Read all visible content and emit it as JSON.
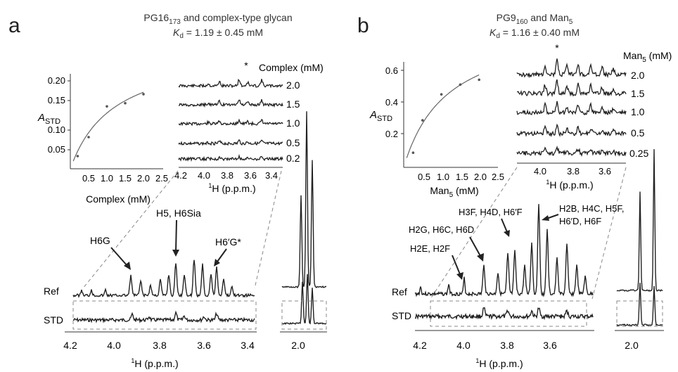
{
  "colors": {
    "ink": "#222222",
    "dash": "#888888",
    "point": "#555555",
    "fit": "#666666"
  },
  "panels": [
    {
      "letter": "a",
      "title_line1": {
        "pre": "PG16",
        "sub": "173",
        "post": " and complex-type glycan"
      },
      "title_line2": {
        "kd_k": "K",
        "kd_sub": "d",
        "kd_value": " = 1.19 ± 0.45 mM"
      },
      "inset": {
        "ylabel": {
          "main": "A",
          "sub": "STD"
        },
        "xlabel": "Complex (mM)",
        "xlim": [
          0,
          2.5
        ],
        "ylim": [
          0,
          0.21
        ],
        "xticks": [
          "0.5",
          "1.0",
          "1.5",
          "2.0",
          "2.5"
        ],
        "yticks": [
          "0.05",
          "0.10",
          "0.15",
          "0.20"
        ]
      },
      "std_series": {
        "header": "Complex (mM)",
        "star": "*",
        "levels": [
          "2.0",
          "1.5",
          "1.0",
          "0.5",
          "0.2"
        ],
        "xticks": [
          "4.2",
          "4.0",
          "3.8",
          "3.6",
          "3.4"
        ],
        "xlabel": {
          "sup": "1",
          "main": "H (p.p.m.)"
        }
      },
      "main_spectrum": {
        "ref_label": "Ref",
        "std_label": "STD",
        "xticks": [
          "4.2",
          "4.0",
          "3.8",
          "3.6",
          "3.4"
        ],
        "side_tick": "2.0",
        "xlabel": {
          "sup": "1",
          "main": "H (p.p.m.)"
        },
        "annotations": [
          {
            "text": "H6G"
          },
          {
            "text": "H5, H6Sia"
          },
          {
            "text": "H6′G*"
          }
        ]
      }
    },
    {
      "letter": "b",
      "title_line1": {
        "pre": "PG9",
        "sub": "160",
        "post": " and Man",
        "sub2": "5"
      },
      "title_line2": {
        "kd_k": "K",
        "kd_sub": "d",
        "kd_value": " = 1.16 ± 0.40 mM"
      },
      "inset": {
        "ylabel": {
          "main": "A",
          "sub": "STD"
        },
        "xlabel": {
          "pre": "Man",
          "sub": "5",
          "post": " (mM)"
        },
        "xlim": [
          0,
          2.5
        ],
        "ylim": [
          0,
          0.65
        ],
        "xticks": [
          "0.5",
          "1.0",
          "1.5",
          "2.0",
          "2.5"
        ],
        "yticks": [
          "0.2",
          "0.4",
          "0.6"
        ]
      },
      "std_series": {
        "header": {
          "pre": "Man",
          "sub": "5",
          "post": " (mM)"
        },
        "star": "*",
        "levels": [
          "2.0",
          "1.5",
          "1.0",
          "0.5",
          "0.25"
        ],
        "xticks": [
          "4.0",
          "3.8",
          "3.6"
        ],
        "xlabel": {
          "sup": "1",
          "main": "H (p.p.m.)"
        }
      },
      "main_spectrum": {
        "ref_label": "Ref",
        "std_label": "STD",
        "xticks": [
          "4.2",
          "4.0",
          "3.8",
          "3.6"
        ],
        "side_tick": "2.0",
        "xlabel": {
          "sup": "1",
          "main": "H (p.p.m.)"
        },
        "annotations": [
          {
            "text": "H3F, H4D, H6′F"
          },
          {
            "text": "H2B, H4C, H5F,"
          },
          {
            "text": "H6′D, H6F"
          },
          {
            "text": "H2G, H6C, H6D"
          },
          {
            "text": "H2E, H2F"
          }
        ]
      }
    }
  ],
  "chart_data": [
    {
      "type": "scatter",
      "panel": "a",
      "title": "PG16173 and complex-type glycan",
      "xlabel": "Complex (mM)",
      "ylabel": "ASTD",
      "xlim": [
        0,
        2.5
      ],
      "ylim": [
        0,
        0.21
      ],
      "series": [
        {
          "x": [
            0.2,
            0.5,
            1.0,
            1.5,
            2.0
          ],
          "y": [
            0.028,
            0.07,
            0.138,
            0.145,
            0.165
          ]
        }
      ],
      "fit": {
        "model": "saturation",
        "kd": 1.19,
        "amax": 0.27
      },
      "grid": false
    },
    {
      "type": "scatter",
      "panel": "b",
      "title": "PG9160 and Man5",
      "xlabel": "Man5 (mM)",
      "ylabel": "ASTD",
      "xlim": [
        0,
        2.5
      ],
      "ylim": [
        0,
        0.65
      ],
      "series": [
        {
          "x": [
            0.25,
            0.5,
            1.0,
            1.5,
            2.0
          ],
          "y": [
            0.09,
            0.29,
            0.45,
            0.51,
            0.54
          ]
        }
      ],
      "fit": {
        "model": "saturation",
        "kd": 1.16,
        "amax": 0.9
      },
      "grid": false
    }
  ]
}
